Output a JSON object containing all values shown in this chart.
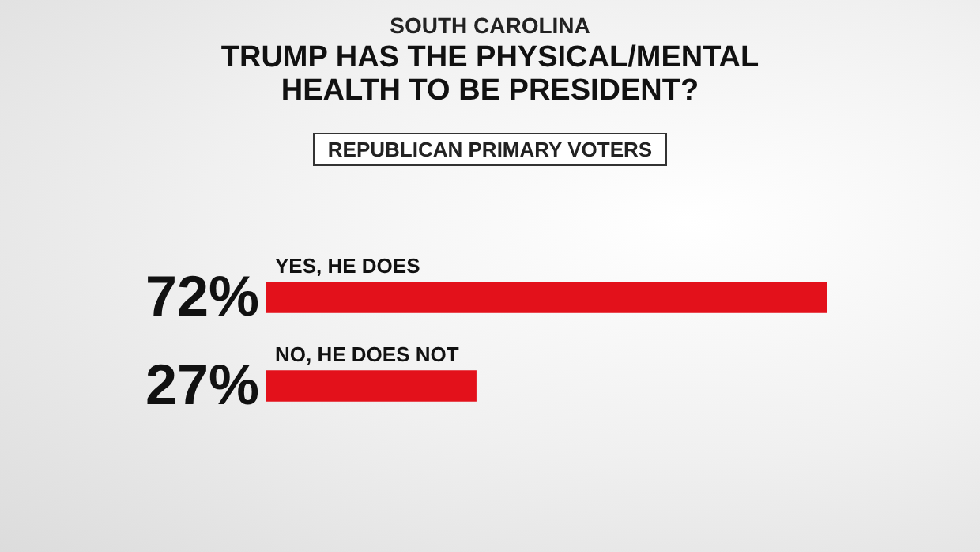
{
  "chart_data": {
    "type": "bar",
    "orientation": "horizontal",
    "title": "TRUMP HAS THE PHYSICAL/MENTAL HEALTH TO BE PRESIDENT?",
    "subtitle": "REPUBLICAN PRIMARY VOTERS",
    "annotations": [
      "SOUTH CAROLINA"
    ],
    "categories": [
      "YES, HE DOES",
      "NO, HE DOES NOT"
    ],
    "values": [
      72,
      27
    ],
    "value_labels": [
      "72%",
      "27%"
    ],
    "color": "#e3111b",
    "grid": false,
    "legend": false,
    "tick_labels": false
  }
}
